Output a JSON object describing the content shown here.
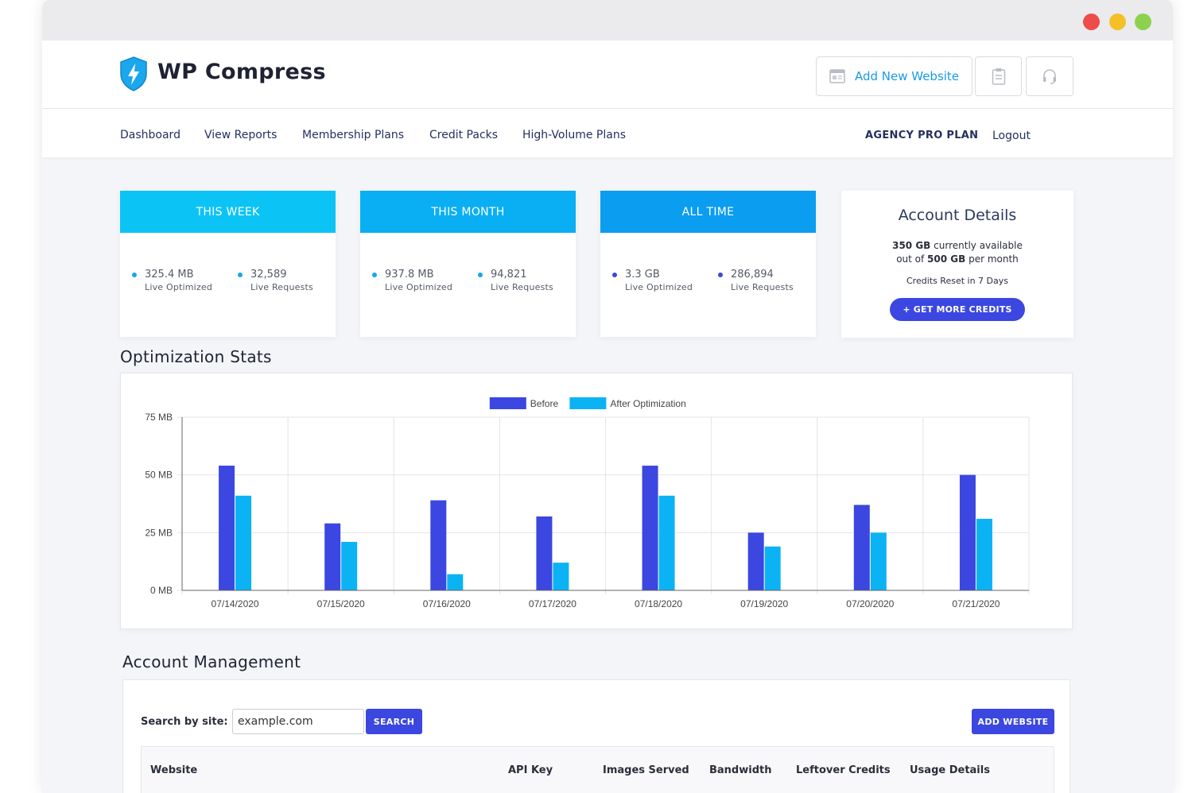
{
  "window": {
    "controls": [
      "close",
      "minimize",
      "maximize"
    ]
  },
  "header": {
    "brand": "WP Compress",
    "logo_icon": "shield-bolt-icon",
    "add_website_label": "Add New Website",
    "buttons_icons": [
      "browser-window-icon",
      "clipboard-icon",
      "headset-icon"
    ]
  },
  "nav": {
    "items": [
      "Dashboard",
      "View Reports",
      "Membership Plans",
      "Credit Packs",
      "High-Volume Plans"
    ],
    "plan": "AGENCY PRO PLAN",
    "logout": "Logout"
  },
  "stats": [
    {
      "title": "THIS WEEK",
      "color": "#0bc4f5",
      "optimized": "325.4 MB",
      "optimized_label": "Live Optimized",
      "requests": "32,589",
      "requests_label": "Live Requests",
      "bullet_color": "#14a7f0"
    },
    {
      "title": "THIS MONTH",
      "color": "#0aaef3",
      "optimized": "937.8 MB",
      "optimized_label": "Live Optimized",
      "requests": "94,821",
      "requests_label": "Live Requests",
      "bullet_color": "#14a7f0"
    },
    {
      "title": "ALL TIME",
      "color": "#0b9df0",
      "optimized": "3.3 GB",
      "optimized_label": "Live Optimized",
      "requests": "286,894",
      "requests_label": "Live Requests",
      "bullet_color": "#3b47e0"
    }
  ],
  "account": {
    "title": "Account Details",
    "available_bold": "350 GB",
    "available_rest": " currently available",
    "limit_pre": "out of ",
    "limit_bold": "500 GB",
    "limit_post": " per month",
    "reset": "Credits Reset in 7 Days",
    "button": "+ GET MORE CREDITS"
  },
  "optimization_title": "Optimization Stats",
  "chart_data": {
    "type": "bar",
    "categories": [
      "07/14/2020",
      "07/15/2020",
      "07/16/2020",
      "07/17/2020",
      "07/18/2020",
      "07/19/2020",
      "07/20/2020",
      "07/21/2020"
    ],
    "series": [
      {
        "name": "Before",
        "color": "#3b47e0",
        "values": [
          54,
          29,
          39,
          32,
          54,
          25,
          37,
          50
        ]
      },
      {
        "name": "After Optimization",
        "color": "#0bb3f5",
        "values": [
          41,
          21,
          7,
          12,
          41,
          19,
          25,
          31
        ]
      }
    ],
    "yticks": [
      "0 MB",
      "25 MB",
      "50 MB",
      "75 MB"
    ],
    "ytick_values": [
      0,
      25,
      50,
      75
    ],
    "ylim": [
      0,
      75
    ],
    "legend_position": "top-center",
    "grid": true
  },
  "management": {
    "title": "Account Management",
    "search_label": "Search by site:",
    "search_placeholder": "example.com",
    "search_button": "SEARCH",
    "add_button": "ADD WEBSITE",
    "columns": [
      "Website",
      "API Key",
      "Images Served",
      "Bandwidth",
      "Leftover Credits",
      "Usage Details"
    ]
  }
}
